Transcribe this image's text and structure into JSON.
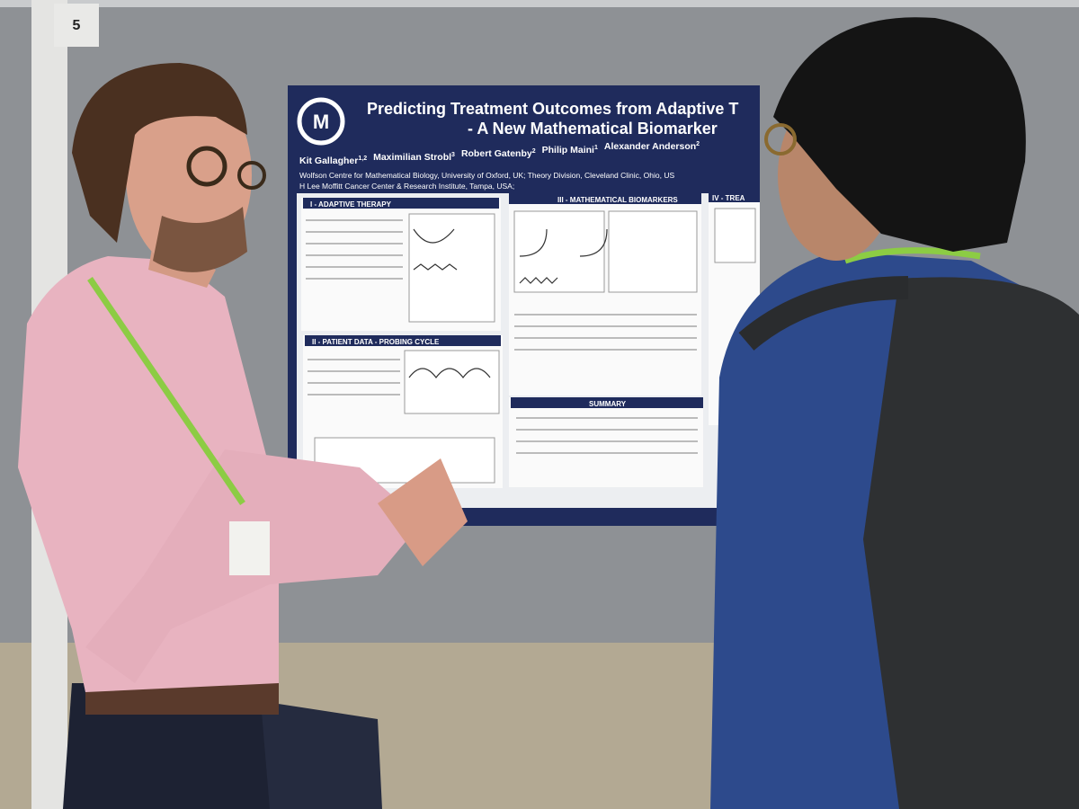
{
  "board_number": "5",
  "poster": {
    "title_line1": "Predicting Treatment Outcomes from Adaptive T",
    "title_line2": "- A New Mathematical Biomarker",
    "authors": [
      {
        "name": "Kit Gallagher",
        "sup": "1,2"
      },
      {
        "name": "Maximilian Strobl",
        "sup": "3"
      },
      {
        "name": "Robert Gatenby",
        "sup": "2"
      },
      {
        "name": "Philip Maini",
        "sup": "1"
      },
      {
        "name": "Alexander Anderson",
        "sup": "2"
      }
    ],
    "affiliation_line1": "Wolfson Centre for Mathematical Biology, University of Oxford, UK;  Theory Division, Cleveland Clinic, Ohio, US",
    "affiliation_line2": "H Lee Moffitt Cancer Center & Research Institute, Tampa, USA;",
    "sections": [
      "I - ADAPTIVE THERAPY",
      "II - PATIENT DATA - PROBING CYCLE",
      "III - MATHEMATICAL BIOMARKERS",
      "SUMMARY",
      "IV - TREA"
    ]
  }
}
